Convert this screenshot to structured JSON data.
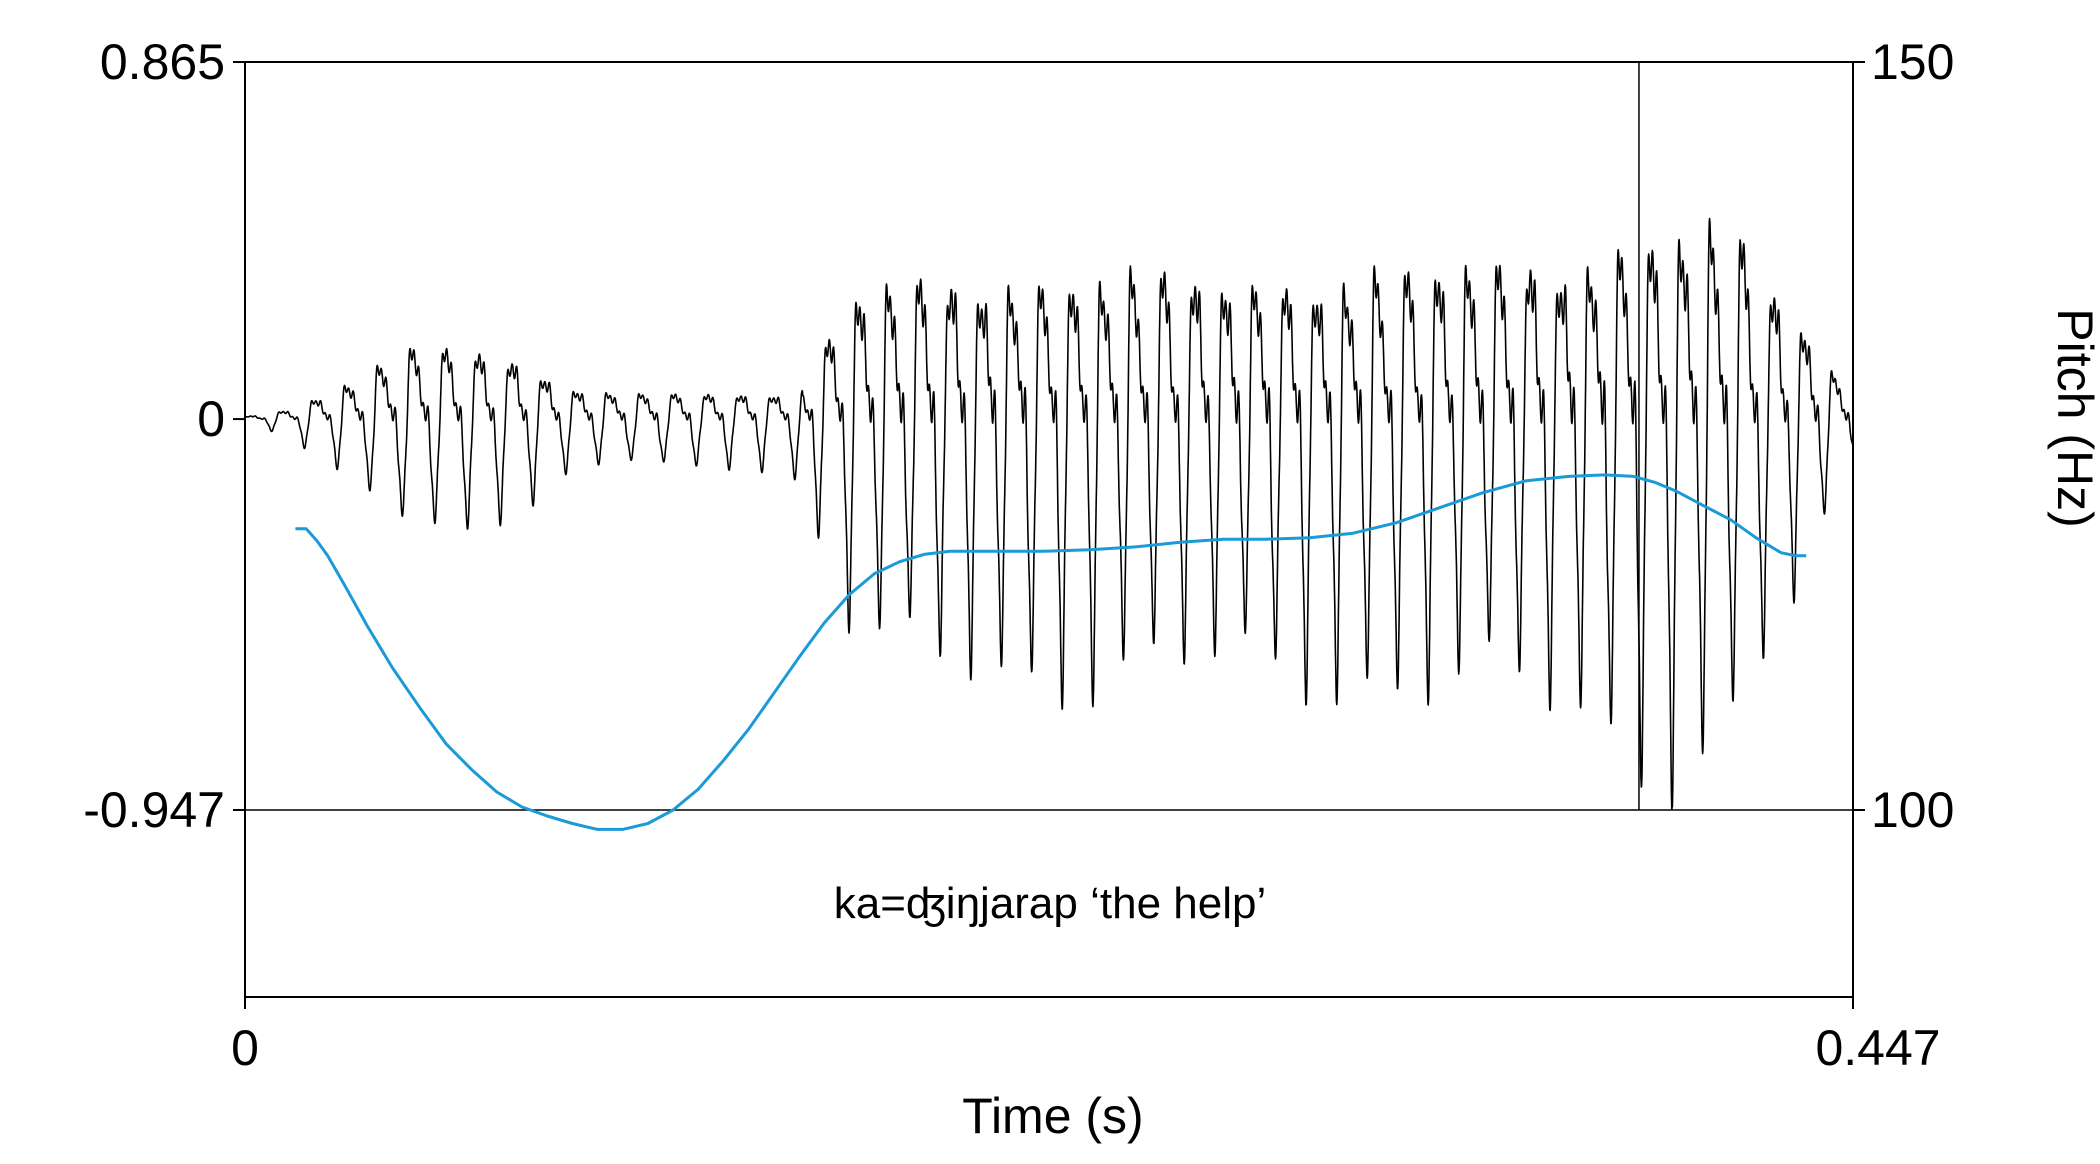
{
  "chart_data": {
    "type": "line",
    "xlabel": "Time (s)",
    "ylabel_right": "Pitch (Hz)",
    "annotation": "ka=ʤiŋjarap ‘the help’",
    "x_axis": {
      "range": [
        0,
        0.447
      ],
      "ticks": [
        "0",
        "0.447"
      ]
    },
    "y_left_axis": {
      "range": [
        -0.947,
        0.865
      ],
      "ticks": [
        "0.865",
        "0",
        "-0.947"
      ]
    },
    "y_right_axis": {
      "range": [
        100,
        150
      ],
      "ticks": [
        "150",
        "100"
      ]
    },
    "grid": false,
    "colors": {
      "waveform": "#000000",
      "pitch": "#1a9ad6"
    },
    "waveform_envelope": {
      "time": [
        0,
        0.012,
        0.018,
        0.03,
        0.045,
        0.06,
        0.075,
        0.09,
        0.105,
        0.12,
        0.135,
        0.15,
        0.155,
        0.16,
        0.17,
        0.19,
        0.21,
        0.23,
        0.25,
        0.27,
        0.29,
        0.31,
        0.33,
        0.35,
        0.37,
        0.375,
        0.385,
        0.395,
        0.405,
        0.415,
        0.425,
        0.432,
        0.44,
        0.447
      ],
      "amplitude": [
        0.01,
        0.04,
        0.08,
        0.16,
        0.3,
        0.3,
        0.26,
        0.14,
        0.12,
        0.12,
        0.12,
        0.12,
        0.15,
        0.3,
        0.55,
        0.62,
        0.64,
        0.64,
        0.62,
        0.62,
        0.64,
        0.65,
        0.66,
        0.68,
        0.72,
        0.76,
        0.82,
        0.86,
        0.84,
        0.78,
        0.55,
        0.45,
        0.25,
        0.1
      ]
    },
    "pitch_series": {
      "name": "Pitch",
      "x": [
        0.014,
        0.017,
        0.02,
        0.023,
        0.028,
        0.034,
        0.041,
        0.049,
        0.056,
        0.063,
        0.07,
        0.077,
        0.084,
        0.091,
        0.098,
        0.105,
        0.112,
        0.119,
        0.126,
        0.133,
        0.14,
        0.147,
        0.154,
        0.161,
        0.168,
        0.175,
        0.182,
        0.189,
        0.196,
        0.203,
        0.21,
        0.222,
        0.235,
        0.248,
        0.26,
        0.272,
        0.284,
        0.296,
        0.308,
        0.32,
        0.332,
        0.344,
        0.356,
        0.368,
        0.378,
        0.386,
        0.392,
        0.398,
        0.405,
        0.413,
        0.42,
        0.427,
        0.431,
        0.434
      ],
      "y": [
        118.8,
        118.8,
        118.0,
        117.0,
        114.9,
        112.3,
        109.5,
        106.7,
        104.4,
        102.7,
        101.2,
        100.2,
        99.6,
        99.1,
        98.7,
        98.7,
        99.1,
        100.0,
        101.4,
        103.3,
        105.4,
        107.8,
        110.2,
        112.5,
        114.4,
        115.8,
        116.6,
        117.1,
        117.3,
        117.3,
        117.3,
        117.3,
        117.4,
        117.6,
        117.9,
        118.1,
        118.1,
        118.2,
        118.5,
        119.2,
        120.2,
        121.2,
        122.0,
        122.3,
        122.4,
        122.3,
        121.9,
        121.3,
        120.4,
        119.4,
        118.2,
        117.2,
        117.0,
        117.0
      ]
    }
  }
}
